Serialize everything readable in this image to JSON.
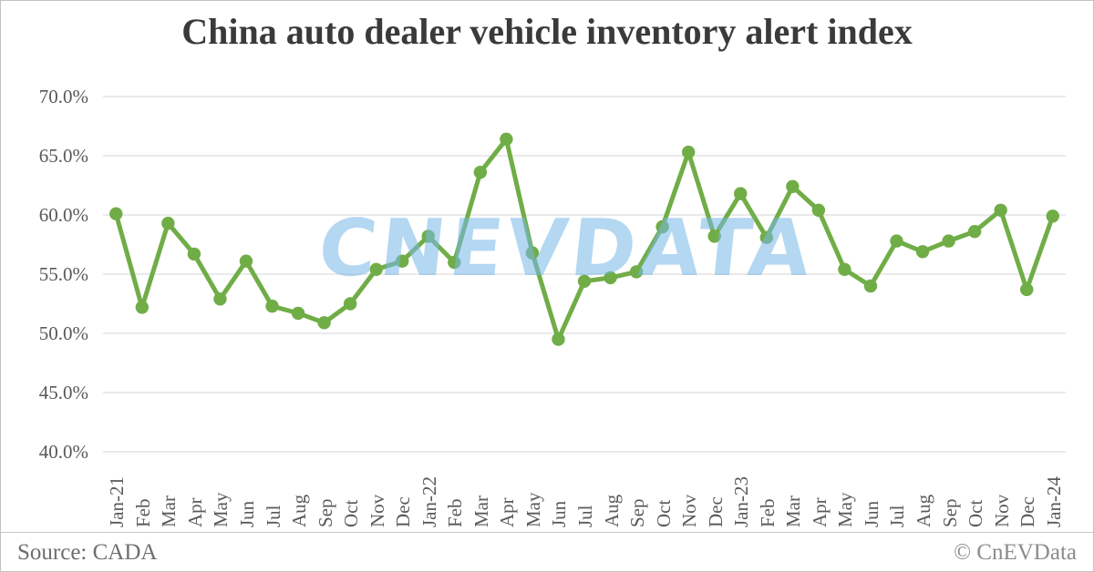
{
  "title": "China auto dealer vehicle inventory alert index",
  "watermark": {
    "text": "CnEVData",
    "color": "#78b8e9"
  },
  "footer": {
    "source": "Source: CADA",
    "copyright": "© CnEVData"
  },
  "chart_data": {
    "type": "line",
    "title": "China auto dealer vehicle inventory alert index",
    "series_name": "inventory alert index",
    "categories": [
      "Jan-21",
      "Feb",
      "Mar",
      "Apr",
      "May",
      "Jun",
      "Jul",
      "Aug",
      "Sep",
      "Oct",
      "Nov",
      "Dec",
      "Jan-22",
      "Feb",
      "Mar",
      "Apr",
      "May",
      "Jun",
      "Jul",
      "Aug",
      "Sep",
      "Oct",
      "Nov",
      "Dec",
      "Jan-23",
      "Feb",
      "Mar",
      "Apr",
      "May",
      "Jun",
      "Jul",
      "Aug",
      "Sep",
      "Oct",
      "Nov",
      "Dec",
      "Jan-24"
    ],
    "values": [
      60.1,
      52.2,
      59.3,
      56.7,
      52.9,
      56.1,
      52.3,
      51.7,
      50.9,
      52.5,
      55.4,
      56.1,
      58.2,
      56.0,
      63.6,
      66.4,
      56.8,
      49.5,
      54.4,
      54.7,
      55.2,
      59.0,
      65.3,
      58.2,
      61.8,
      58.1,
      62.4,
      60.4,
      55.4,
      54.0,
      57.8,
      56.9,
      57.8,
      58.6,
      60.4,
      53.7,
      59.9
    ],
    "unit": "%",
    "ylim": [
      40,
      70
    ],
    "y_tick_values": [
      70,
      65,
      60,
      55,
      50,
      45,
      40
    ],
    "y_tick_labels": [
      "70.0%",
      "65.0%",
      "60.0%",
      "55.0%",
      "50.0%",
      "45.0%",
      "40.0%"
    ],
    "grid": true,
    "legend": false,
    "line_color": "#70ad47",
    "marker": "circle",
    "gridline_color": "#d6d6d6",
    "axis_text_color": "#595959"
  }
}
